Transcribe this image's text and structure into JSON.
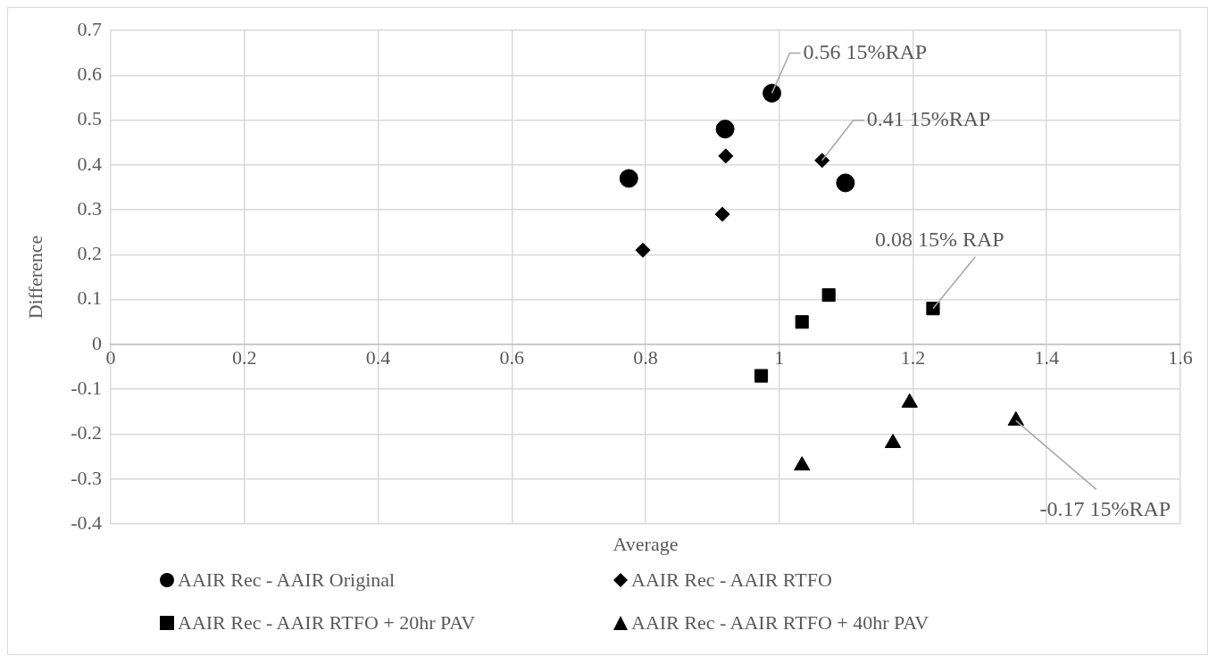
{
  "chart_data": {
    "type": "scatter",
    "xlabel": "Average",
    "ylabel": "Difference",
    "xlim": [
      0,
      1.6
    ],
    "xticks": [
      0,
      0.2,
      0.4,
      0.6,
      0.8,
      1,
      1.2,
      1.4,
      1.6
    ],
    "ylim": [
      -0.4,
      0.7
    ],
    "yticks": [
      -0.4,
      -0.3,
      -0.2,
      -0.1,
      0,
      0.1,
      0.2,
      0.3,
      0.4,
      0.5,
      0.6,
      0.7
    ],
    "grid": true,
    "legend": "bottom",
    "series": [
      {
        "name": "AAIR Rec - AAIR Original",
        "color": "#000000",
        "marker": "circle",
        "x": [
          0.775,
          0.919,
          1.099,
          0.989
        ],
        "values": [
          0.37,
          0.48,
          0.36,
          0.56
        ]
      },
      {
        "name": "AAIR Rec - AAIR RTFO",
        "color": "#000000",
        "marker": "diamond",
        "x": [
          0.796,
          0.915,
          0.92,
          1.064
        ],
        "values": [
          0.21,
          0.29,
          0.42,
          0.41
        ]
      },
      {
        "name": "AAIR Rec - AAIR RTFO + 20hr PAV",
        "color": "#000000",
        "marker": "square",
        "x": [
          0.973,
          1.034,
          1.074,
          1.23
        ],
        "values": [
          -0.07,
          0.05,
          0.11,
          0.08
        ]
      },
      {
        "name": "AAIR Rec - AAIR RTFO + 40hr PAV",
        "color": "#000000",
        "marker": "triangle",
        "x": [
          1.034,
          1.17,
          1.195,
          1.354
        ],
        "values": [
          -0.27,
          -0.22,
          -0.13,
          -0.17
        ]
      }
    ],
    "annotations": [
      {
        "text": "0.56 15%RAP",
        "x": 0.989,
        "y": 0.56
      },
      {
        "text": "0.41 15%RAP",
        "x": 1.064,
        "y": 0.41
      },
      {
        "text": "0.08 15% RAP",
        "x": 1.23,
        "y": 0.08
      },
      {
        "text": "-0.17 15%RAP",
        "x": 1.354,
        "y": -0.17
      }
    ]
  }
}
